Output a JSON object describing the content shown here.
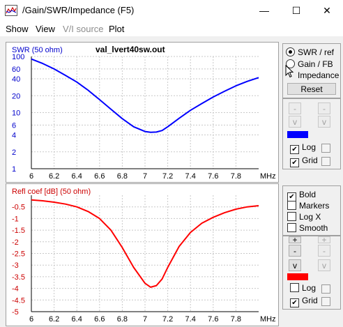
{
  "window": {
    "title": "/Gain/SWR/Impedance (F5)",
    "minimize": "—",
    "maximize": "☐",
    "close": "✕"
  },
  "menu": [
    {
      "label": "Show",
      "enabled": true
    },
    {
      "label": "View",
      "enabled": true
    },
    {
      "label": "V/I source",
      "enabled": false
    },
    {
      "label": "Plot",
      "enabled": true
    }
  ],
  "top_panel": {
    "radio_swr": "SWR / ref",
    "radio_gain": "Gain / FB",
    "radio_imp": "Impedance",
    "reset": "Reset",
    "up_left": "-",
    "up_right": "-",
    "down_left": "v",
    "down_right": "v",
    "mid_left": "-",
    "mid_right": "-",
    "log_label": "Log",
    "grid_label": "Grid",
    "log_checked": true,
    "grid_checked": true,
    "swatch_color": "#0000ff"
  },
  "bottom_panel": {
    "bold_label": "Bold",
    "markers_label": "Markers",
    "logx_label": "Log X",
    "smooth_label": "Smooth",
    "plus_left": "+",
    "plus_right": "+",
    "mid_left": "-",
    "mid_right": "-",
    "down_left": "v",
    "down_right": "v",
    "log_label": "Log",
    "grid_label": "Grid",
    "bold_checked": true,
    "grid_checked": true,
    "swatch_color": "#ff0000"
  },
  "chart_data": [
    {
      "type": "line",
      "ylabel": "SWR (50 ohm)",
      "title": "val_lvert40sw.out",
      "xunit": "MHz",
      "xlim": [
        6,
        8
      ],
      "xticks": [
        "6",
        "6.2",
        "6.4",
        "6.6",
        "6.8",
        "7",
        "7.2",
        "7.4",
        "7.6",
        "7.8"
      ],
      "yscale": "log",
      "ylim": [
        1,
        100
      ],
      "yticks": [
        "1",
        "2",
        "4",
        "6",
        "10",
        "20",
        "40",
        "60",
        "100"
      ],
      "yticklabels_visible": [
        "100",
        "60",
        "40",
        "20",
        "10",
        "6",
        "4",
        "2",
        "1"
      ],
      "grid": true,
      "series": [
        {
          "color": "#0000ff",
          "x": [
            6.0,
            6.1,
            6.2,
            6.3,
            6.4,
            6.5,
            6.6,
            6.7,
            6.8,
            6.9,
            7.0,
            7.05,
            7.1,
            7.15,
            7.2,
            7.3,
            7.4,
            7.5,
            7.6,
            7.7,
            7.8,
            7.9,
            8.0
          ],
          "y": [
            90,
            75,
            60,
            46,
            35,
            25,
            17,
            11.5,
            7.8,
            5.6,
            4.6,
            4.45,
            4.5,
            4.8,
            5.6,
            7.9,
            11,
            14.5,
            19,
            24,
            30,
            36,
            42
          ]
        }
      ]
    },
    {
      "type": "line",
      "ylabel": "Refl coef [dB] (50 ohm)",
      "xunit": "MHz",
      "xlim": [
        6,
        8
      ],
      "xticks": [
        "6",
        "6.2",
        "6.4",
        "6.6",
        "6.8",
        "7",
        "7.2",
        "7.4",
        "7.6",
        "7.8"
      ],
      "ylim": [
        -5,
        0
      ],
      "yticks": [
        "-0.5",
        "-1",
        "-1.5",
        "-2",
        "-2.5",
        "-3",
        "-3.5",
        "-4",
        "-4.5",
        "-5"
      ],
      "grid": true,
      "series": [
        {
          "color": "#ff0000",
          "x": [
            6.0,
            6.1,
            6.2,
            6.3,
            6.4,
            6.5,
            6.6,
            6.7,
            6.8,
            6.9,
            7.0,
            7.05,
            7.1,
            7.15,
            7.2,
            7.3,
            7.4,
            7.5,
            7.6,
            7.7,
            7.8,
            7.9,
            8.0
          ],
          "y": [
            -0.2,
            -0.24,
            -0.3,
            -0.38,
            -0.5,
            -0.7,
            -1.0,
            -1.5,
            -2.25,
            -3.1,
            -3.78,
            -3.95,
            -3.88,
            -3.6,
            -3.1,
            -2.2,
            -1.6,
            -1.2,
            -0.95,
            -0.75,
            -0.6,
            -0.5,
            -0.45
          ]
        }
      ]
    }
  ]
}
